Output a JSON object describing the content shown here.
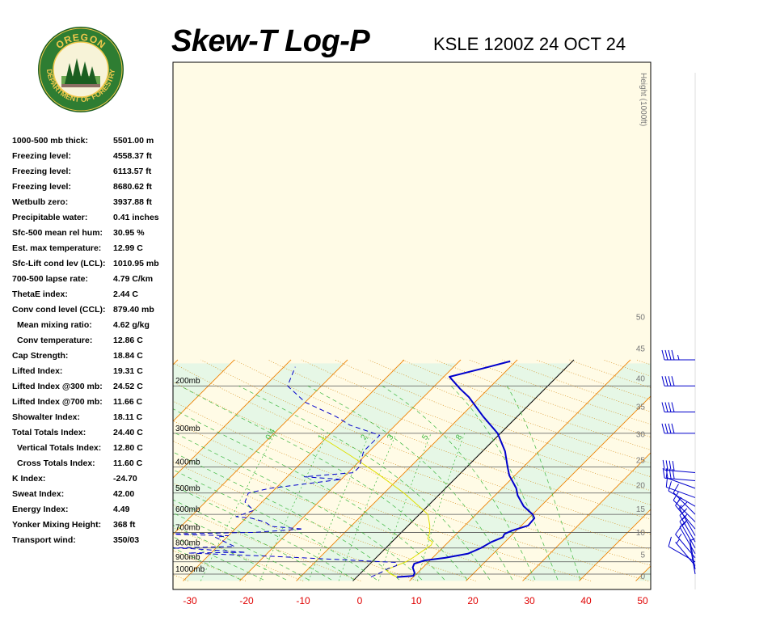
{
  "header": {
    "title": "Skew-T Log-P",
    "station": "KSLE 1200Z 24 OCT 24"
  },
  "logo": {
    "text_top": "OREGON",
    "text_bottom": "DEPARTMENT OF FORESTRY",
    "ring_color": "#2e7d32",
    "accent_color": "#f2c94c"
  },
  "indices": [
    {
      "label": "1000-500 mb thick:",
      "value": "5501.00 m"
    },
    {
      "label": "Freezing level:",
      "value": "4558.37 ft"
    },
    {
      "label": "Freezing level:",
      "value": "6113.57 ft"
    },
    {
      "label": "Freezing level:",
      "value": "8680.62 ft"
    },
    {
      "label": "Wetbulb zero:",
      "value": "3937.88 ft"
    },
    {
      "label": "Precipitable water:",
      "value": "0.41 inches"
    },
    {
      "label": "Sfc-500 mean rel hum:",
      "value": "30.95 %"
    },
    {
      "label": "Est. max temperature:",
      "value": "12.99 C"
    },
    {
      "label": "Sfc-Lift cond lev (LCL):",
      "value": "1010.95 mb"
    },
    {
      "label": "700-500 lapse rate:",
      "value": "4.79 C/km"
    },
    {
      "label": "ThetaE index:",
      "value": "2.44 C"
    },
    {
      "label": "Conv cond level (CCL):",
      "value": "879.40 mb"
    },
    {
      "label": "Mean mixing ratio:",
      "value": "4.62 g/kg",
      "indent": true
    },
    {
      "label": "Conv temperature:",
      "value": "12.86 C",
      "indent": true
    },
    {
      "label": "Cap Strength:",
      "value": "18.84 C"
    },
    {
      "label": "Lifted Index:",
      "value": "19.31 C"
    },
    {
      "label": "Lifted Index @300 mb:",
      "value": "24.52 C"
    },
    {
      "label": "Lifted Index @700 mb:",
      "value": "11.66 C"
    },
    {
      "label": "Showalter Index:",
      "value": "18.11 C"
    },
    {
      "label": "Total Totals Index:",
      "value": "24.40 C"
    },
    {
      "label": "Vertical Totals Index:",
      "value": "12.80 C",
      "indent": true
    },
    {
      "label": "Cross Totals Index:",
      "value": "11.60 C",
      "indent": true
    },
    {
      "label": "K Index:",
      "value": "-24.70"
    },
    {
      "label": "Sweat Index:",
      "value": "42.00"
    },
    {
      "label": "Energy Index:",
      "value": "4.49"
    },
    {
      "label": "Yonker Mixing Height:",
      "value": "368 ft"
    },
    {
      "label": "Transport wind:",
      "value": "350/03"
    }
  ],
  "chart_data": {
    "type": "skew-t",
    "xlabel": "",
    "ylabel": "",
    "x_ticks": [
      "-30",
      "-20",
      "-10",
      "0",
      "10",
      "20",
      "30",
      "40",
      "50"
    ],
    "pressure_labels": [
      "200mb",
      "300mb",
      "400mb",
      "500mb",
      "600mb",
      "700mb",
      "800mb",
      "900mb",
      "1000mb"
    ],
    "pressure_levels": [
      200,
      300,
      400,
      500,
      600,
      700,
      800,
      900,
      1000
    ],
    "height_axis_label": "Height (1000ft)",
    "height_ticks": [
      "0",
      "5",
      "10",
      "15",
      "20",
      "25",
      "30",
      "35",
      "40",
      "45",
      "50"
    ],
    "mixing_ratio_labels": [
      "0.4",
      "1",
      "2",
      "3",
      "5",
      "8"
    ],
    "xlim": [
      -30,
      50
    ],
    "ylim_mb": [
      1050,
      165
    ],
    "grid": true,
    "colors": {
      "temperature": "#0000cc",
      "dewpoint": "#0000cc",
      "parcel": "#e0e000",
      "isotherm": "#f08000",
      "dry_adiabat": "#d08000",
      "moist_adiabat": "#3fb83f",
      "mixing_ratio": "#d00000",
      "tick_labels": "#e00000",
      "freezing_isotherm": "#000000",
      "wind_barbs": "#0000cc"
    },
    "series": [
      {
        "name": "Temperature",
        "style": "solid",
        "points": [
          [
            7.1,
            1025
          ],
          [
            9.8,
            1015
          ],
          [
            9.5,
            990
          ],
          [
            8.2,
            945
          ],
          [
            7.8,
            915
          ],
          [
            9.0,
            890
          ],
          [
            12.2,
            870
          ],
          [
            15.5,
            840
          ],
          [
            16.8,
            800
          ],
          [
            17.6,
            760
          ],
          [
            18.8,
            730
          ],
          [
            18.5,
            710
          ],
          [
            19.2,
            690
          ],
          [
            21.2,
            660
          ],
          [
            21.0,
            620
          ],
          [
            20.0,
            600
          ],
          [
            17.0,
            560
          ],
          [
            14.0,
            510
          ],
          [
            12.5,
            480
          ],
          [
            9.0,
            430
          ],
          [
            7.2,
            400
          ],
          [
            4.0,
            350
          ],
          [
            -0.5,
            300
          ],
          [
            -6.0,
            260
          ],
          [
            -12.0,
            220
          ],
          [
            -15.0,
            205
          ],
          [
            -19.0,
            185
          ],
          [
            -14.5,
            172
          ],
          [
            -11.0,
            162
          ]
        ]
      },
      {
        "name": "Dewpoint",
        "style": "dashed",
        "points": [
          [
            2.5,
            1025
          ],
          [
            3.5,
            985
          ],
          [
            4.0,
            955
          ],
          [
            5.0,
            930
          ],
          [
            4.5,
            905
          ],
          [
            -18.0,
            860
          ],
          [
            -34.0,
            835
          ],
          [
            -24.0,
            830
          ],
          [
            -34.0,
            805
          ],
          [
            -38.0,
            800
          ],
          [
            -27.0,
            790
          ],
          [
            -32.0,
            730
          ],
          [
            -30.0,
            720
          ],
          [
            -42.0,
            710
          ],
          [
            -26.0,
            700
          ],
          [
            -18.0,
            680
          ],
          [
            -24.0,
            665
          ],
          [
            -26.0,
            640
          ],
          [
            -29.0,
            620
          ],
          [
            -32.0,
            612
          ],
          [
            -30.0,
            580
          ],
          [
            -33.0,
            540
          ],
          [
            -34.0,
            500
          ],
          [
            -31.0,
            480
          ],
          [
            -20.0,
            445
          ],
          [
            -27.0,
            435
          ],
          [
            -19.0,
            420
          ],
          [
            -19.0,
            400
          ],
          [
            -21.0,
            350
          ],
          [
            -21.0,
            305
          ],
          [
            -28.0,
            280
          ],
          [
            -32.0,
            260
          ],
          [
            -40.0,
            230
          ],
          [
            -46.0,
            200
          ],
          [
            -48.0,
            170
          ]
        ]
      },
      {
        "name": "Parcel",
        "style": "solid",
        "points": [
          [
            7.1,
            1025
          ],
          [
            5.5,
            1000
          ],
          [
            3.9,
            965
          ],
          [
            5.0,
            930
          ],
          [
            6.0,
            900
          ],
          [
            6.5,
            870
          ],
          [
            7.5,
            780
          ],
          [
            7.2,
            760
          ],
          [
            5.8,
            740
          ],
          [
            5.0,
            700
          ],
          [
            3.8,
            660
          ],
          [
            1.5,
            600
          ],
          [
            -1.5,
            560
          ],
          [
            -6.5,
            500
          ],
          [
            -15.0,
            420
          ],
          [
            -23.0,
            360
          ],
          [
            -31.0,
            310
          ]
        ]
      }
    ],
    "wind_barbs": [
      {
        "pressure": 1000,
        "direction": 350,
        "speed": 3
      },
      {
        "pressure": 960,
        "direction": 350,
        "speed": 5
      },
      {
        "pressure": 930,
        "direction": 320,
        "speed": 5
      },
      {
        "pressure": 900,
        "direction": 300,
        "speed": 10
      },
      {
        "pressure": 870,
        "direction": 320,
        "speed": 15
      },
      {
        "pressure": 840,
        "direction": 330,
        "speed": 10
      },
      {
        "pressure": 800,
        "direction": 330,
        "speed": 15
      },
      {
        "pressure": 760,
        "direction": 330,
        "speed": 15
      },
      {
        "pressure": 720,
        "direction": 330,
        "speed": 15
      },
      {
        "pressure": 680,
        "direction": 320,
        "speed": 15
      },
      {
        "pressure": 640,
        "direction": 315,
        "speed": 15
      },
      {
        "pressure": 600,
        "direction": 315,
        "speed": 10
      },
      {
        "pressure": 560,
        "direction": 300,
        "speed": 10
      },
      {
        "pressure": 520,
        "direction": 290,
        "speed": 10
      },
      {
        "pressure": 480,
        "direction": 290,
        "speed": 10
      },
      {
        "pressure": 450,
        "direction": 275,
        "speed": 40
      },
      {
        "pressure": 420,
        "direction": 275,
        "speed": 40
      },
      {
        "pressure": 300,
        "direction": 270,
        "speed": 40
      },
      {
        "pressure": 250,
        "direction": 270,
        "speed": 40
      },
      {
        "pressure": 200,
        "direction": 270,
        "speed": 40
      },
      {
        "pressure": 160,
        "direction": 270,
        "speed": 45
      }
    ]
  }
}
